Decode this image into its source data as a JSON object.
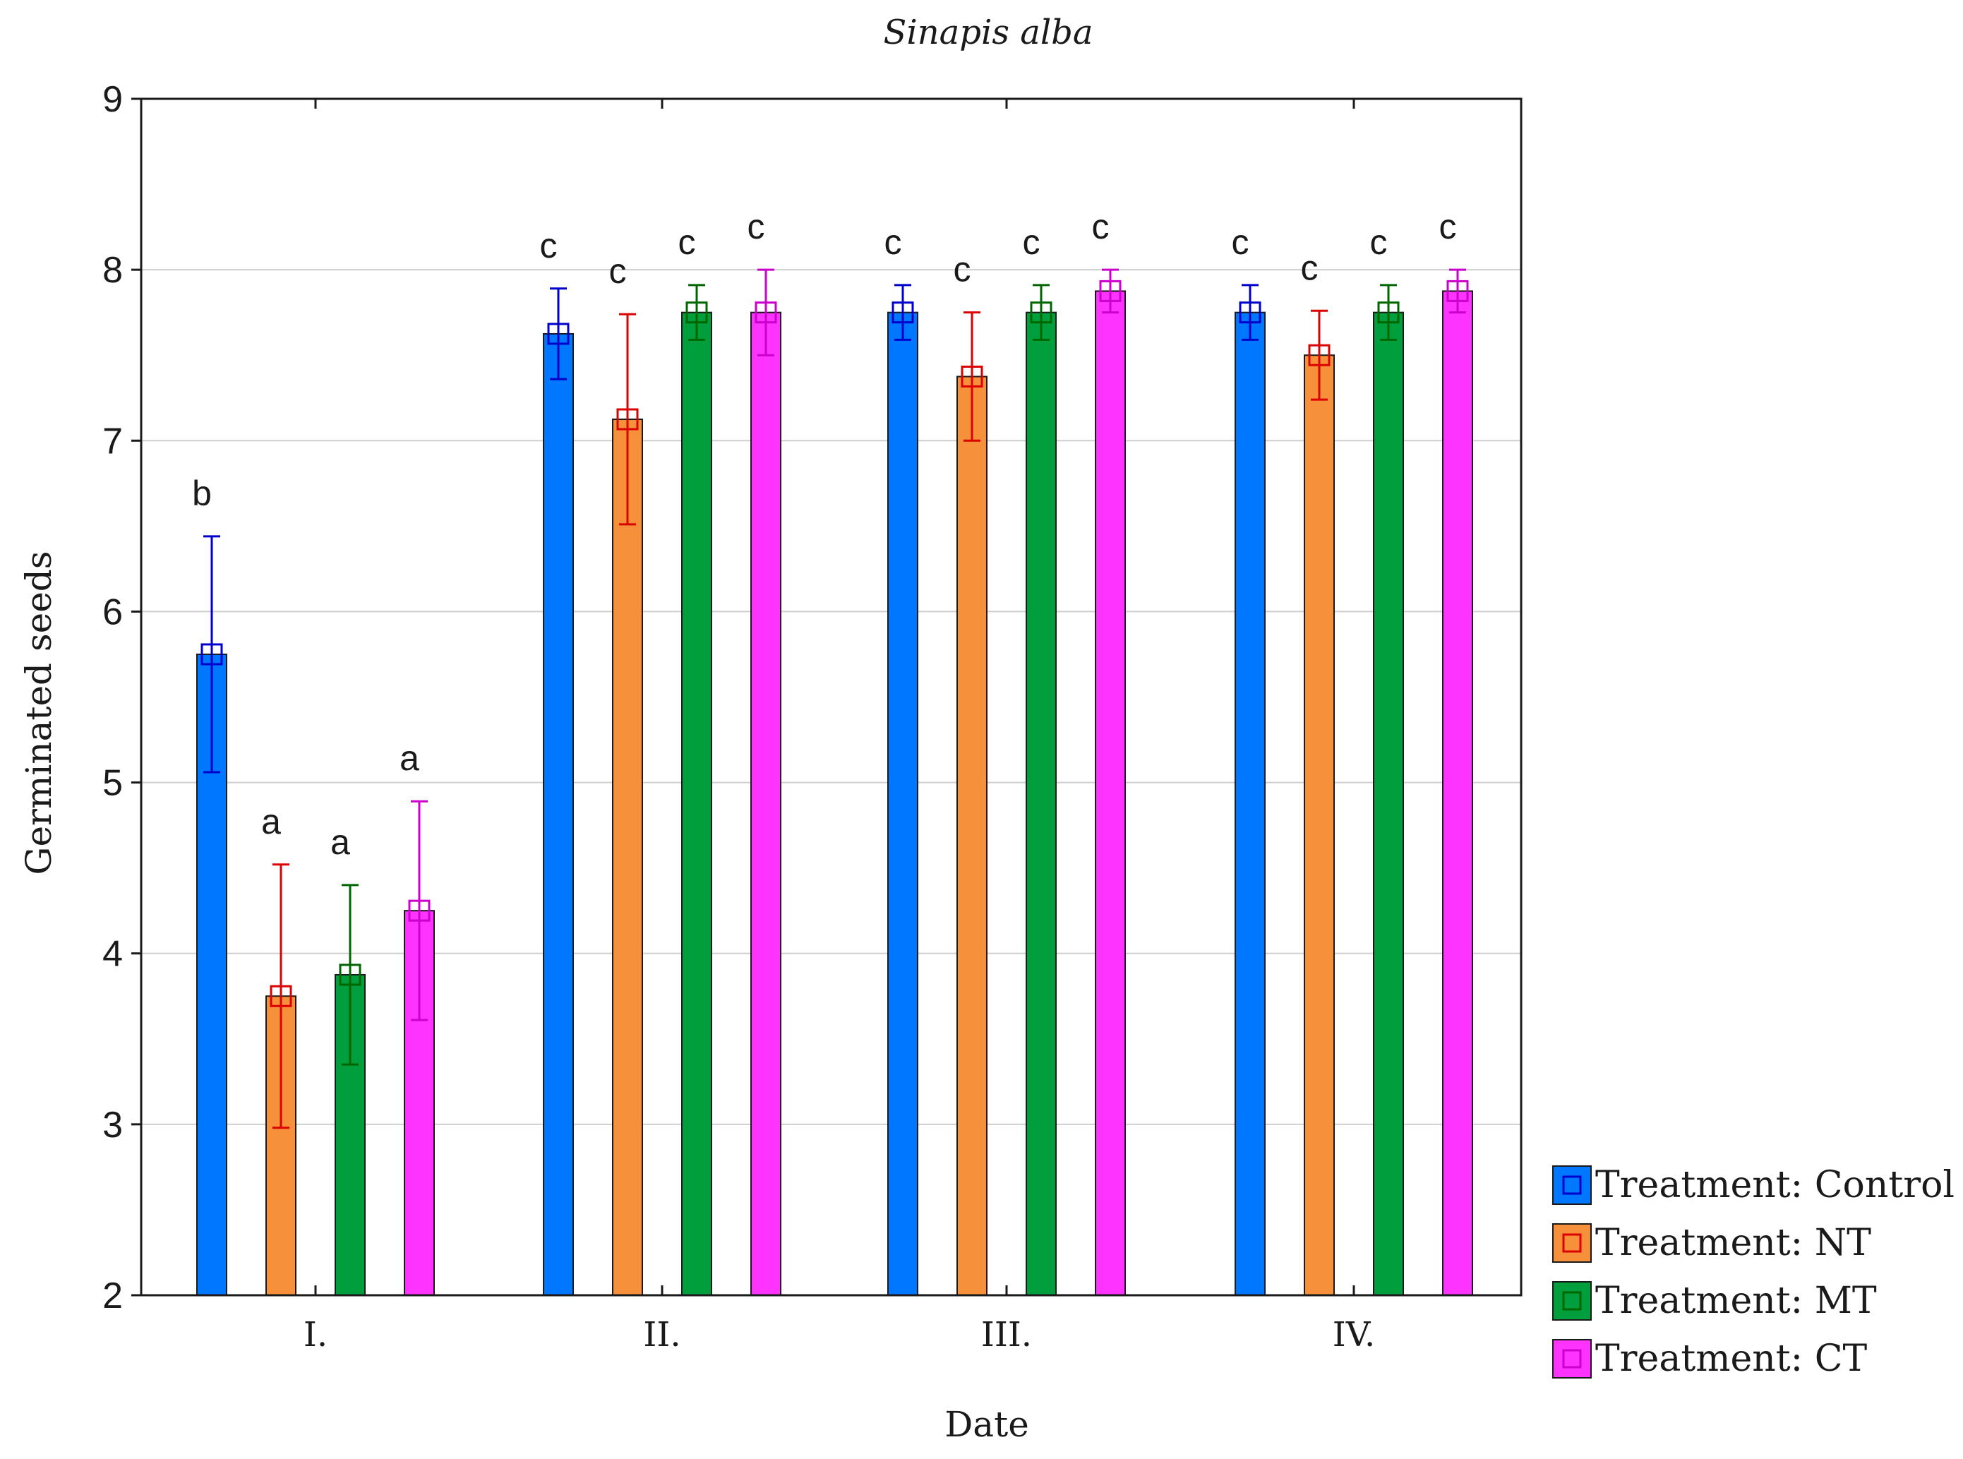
{
  "chart_data": {
    "type": "bar",
    "title": "Sinapis alba",
    "xlabel": "Date",
    "ylabel": "Germinated seeds",
    "ylim": [
      2,
      9
    ],
    "yticks": [
      "2",
      "3",
      "4",
      "5",
      "6",
      "7",
      "8",
      "9"
    ],
    "grid": true,
    "legend_position": "bottom-right, outside plot",
    "categories": [
      "I.",
      "II.",
      "III.",
      "IV."
    ],
    "series": [
      {
        "name": "Treatment: Control",
        "color": "#0077ff",
        "edge": "#0000cc",
        "values": [
          5.75,
          7.625,
          7.75,
          7.75
        ],
        "err_low": [
          5.06,
          7.36,
          7.59,
          7.59
        ],
        "err_high": [
          6.44,
          7.89,
          7.91,
          7.91
        ],
        "labels": [
          "b",
          "c",
          "c",
          "c"
        ]
      },
      {
        "name": "Treatment: NT",
        "color": "#f7903a",
        "edge": "#dd0000",
        "values": [
          3.75,
          7.125,
          7.375,
          7.5
        ],
        "err_low": [
          2.98,
          6.51,
          7.0,
          7.24
        ],
        "err_high": [
          4.52,
          7.74,
          7.75,
          7.76
        ],
        "labels": [
          "a",
          "c",
          "c",
          "c"
        ]
      },
      {
        "name": "Treatment: MT",
        "color": "#009e3c",
        "edge": "#006600",
        "values": [
          3.875,
          7.75,
          7.75,
          7.75
        ],
        "err_low": [
          3.35,
          7.59,
          7.59,
          7.59
        ],
        "err_high": [
          4.4,
          7.91,
          7.91,
          7.91
        ],
        "labels": [
          "a",
          "c",
          "c",
          "c"
        ]
      },
      {
        "name": "Treatment: CT",
        "color": "#ff33ff",
        "edge": "#cc00cc",
        "values": [
          4.25,
          7.75,
          7.875,
          7.875
        ],
        "err_low": [
          3.61,
          7.5,
          7.75,
          7.75
        ],
        "err_high": [
          4.89,
          8.0,
          8.0,
          8.0
        ],
        "labels": [
          "a",
          "c",
          "c",
          "c"
        ]
      }
    ]
  }
}
